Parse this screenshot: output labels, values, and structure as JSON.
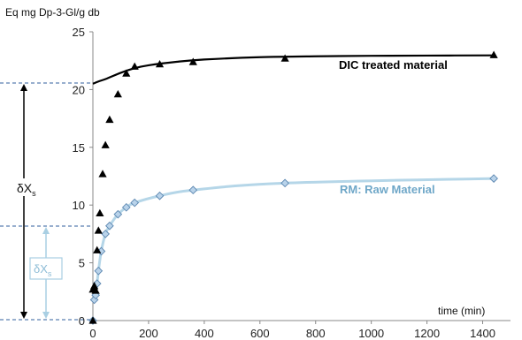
{
  "chart_data": {
    "type": "scatter",
    "title": "",
    "ylabel": "Eq mg Dp-3-Gl/g db",
    "xlabel": "time (min)",
    "xlim": [
      0,
      1500
    ],
    "ylim": [
      0,
      25
    ],
    "x_ticks": [
      0,
      200,
      400,
      600,
      800,
      1000,
      1200,
      1400
    ],
    "y_ticks": [
      0,
      5,
      10,
      15,
      20,
      25
    ],
    "grid": false,
    "series": [
      {
        "name": "DIC treated material",
        "color": "#000000",
        "marker": "triangle",
        "points": [
          [
            0,
            0
          ],
          [
            0,
            2.7
          ],
          [
            5,
            3.0
          ],
          [
            10,
            2.6
          ],
          [
            15,
            6.1
          ],
          [
            20,
            7.8
          ],
          [
            25,
            9.3
          ],
          [
            35,
            12.7
          ],
          [
            45,
            15.2
          ],
          [
            60,
            17.4
          ],
          [
            90,
            19.6
          ],
          [
            120,
            21.4
          ],
          [
            150,
            22.0
          ],
          [
            240,
            22.2
          ],
          [
            360,
            22.4
          ],
          [
            690,
            22.7
          ],
          [
            1440,
            23.0
          ]
        ],
        "fit": [
          [
            0,
            20.5
          ],
          [
            20,
            20.7
          ],
          [
            50,
            20.95
          ],
          [
            100,
            21.45
          ],
          [
            150,
            21.85
          ],
          [
            200,
            22.1
          ],
          [
            300,
            22.4
          ],
          [
            400,
            22.6
          ],
          [
            600,
            22.8
          ],
          [
            800,
            22.88
          ],
          [
            1000,
            22.92
          ],
          [
            1200,
            22.94
          ],
          [
            1440,
            22.96
          ]
        ]
      },
      {
        "name": "RM: Raw Material",
        "color": "#6fa7c8",
        "marker": "diamond",
        "points": [
          [
            0,
            0
          ],
          [
            5,
            1.8
          ],
          [
            10,
            2.2
          ],
          [
            15,
            3.2
          ],
          [
            20,
            4.3
          ],
          [
            30,
            6.0
          ],
          [
            45,
            7.5
          ],
          [
            60,
            8.2
          ],
          [
            90,
            9.2
          ],
          [
            120,
            9.8
          ],
          [
            150,
            10.2
          ],
          [
            240,
            10.8
          ],
          [
            360,
            11.3
          ],
          [
            690,
            11.9
          ],
          [
            1440,
            12.3
          ]
        ]
      }
    ],
    "annotations": [
      "δXs",
      "δXs"
    ]
  }
}
